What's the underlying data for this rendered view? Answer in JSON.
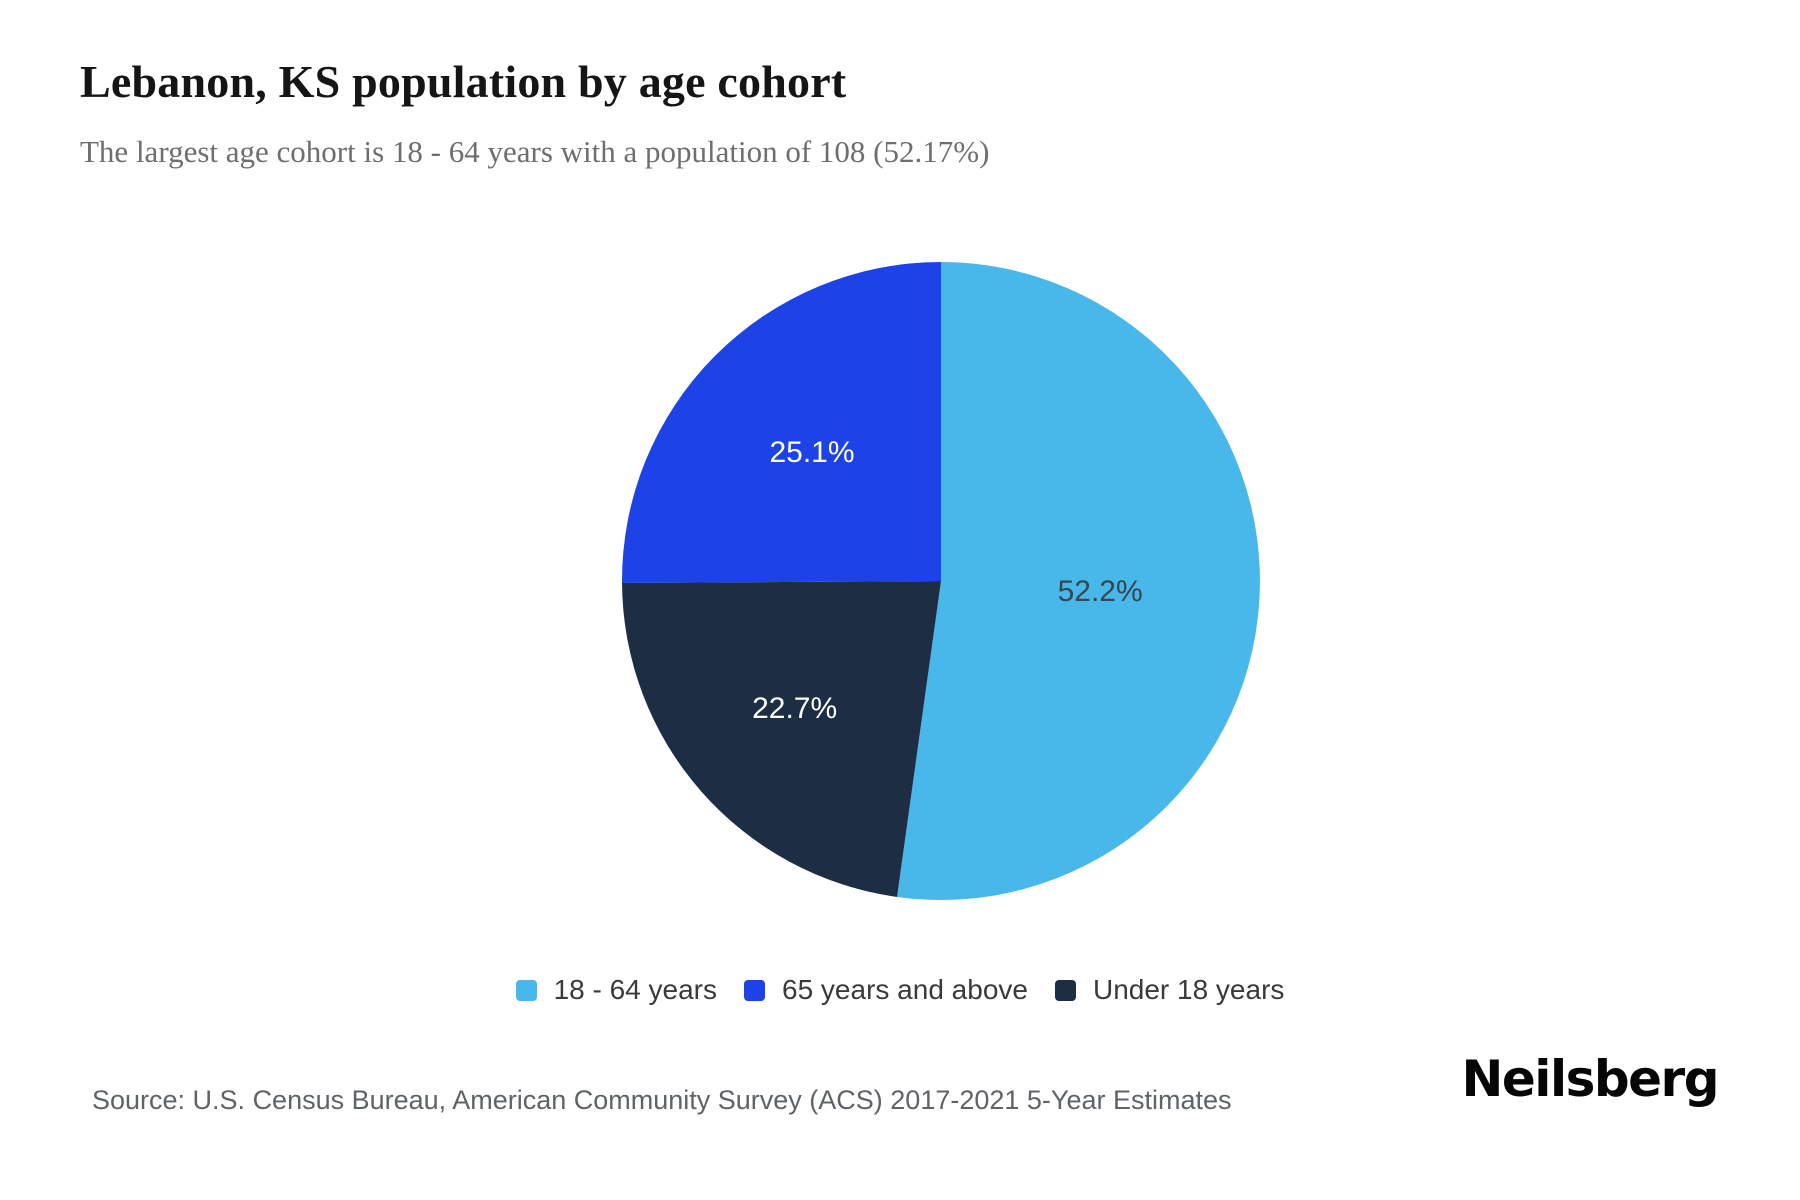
{
  "header": {
    "title": "Lebanon, KS population by age cohort",
    "subtitle": "The largest age cohort is 18 - 64 years with a population of 108 (52.17%)"
  },
  "chart_data": {
    "type": "pie",
    "title": "Lebanon, KS population by age cohort",
    "subtitle": "The largest age cohort is 18 - 64 years with a population of 108 (52.17%)",
    "unit": "percent of total population",
    "start_angle_deg": 0,
    "direction": "clockwise",
    "slices": [
      {
        "label": "18 - 64 years",
        "value": 52.2,
        "data_label": "52.2%",
        "color": "#48b7e9",
        "label_color": "#37464f"
      },
      {
        "label": "Under 18 years",
        "value": 22.7,
        "data_label": "22.7%",
        "color": "#1d2e44",
        "label_color": "#ffffff"
      },
      {
        "label": "65 years and above",
        "value": 25.1,
        "data_label": "25.1%",
        "color": "#1c42e8",
        "label_color": "#ffffff"
      }
    ],
    "legend": {
      "position": "bottom",
      "items": [
        {
          "label": "18 - 64 years",
          "color": "#48b7e9"
        },
        {
          "label": "65 years and above",
          "color": "#1c42e8"
        },
        {
          "label": "Under 18 years",
          "color": "#1d2e44"
        }
      ]
    },
    "largest_cohort": {
      "label": "18 - 64 years",
      "population": 108,
      "share_pct": 52.17
    }
  },
  "footer": {
    "source": "Source: U.S. Census Bureau, American Community Survey (ACS) 2017-2021 5-Year Estimates",
    "brand": "Neilsberg"
  },
  "colors": {
    "accent_light_blue": "#48b7e9",
    "accent_blue": "#1c42e8",
    "accent_navy": "#1d2e44",
    "background": "#ffffff"
  }
}
